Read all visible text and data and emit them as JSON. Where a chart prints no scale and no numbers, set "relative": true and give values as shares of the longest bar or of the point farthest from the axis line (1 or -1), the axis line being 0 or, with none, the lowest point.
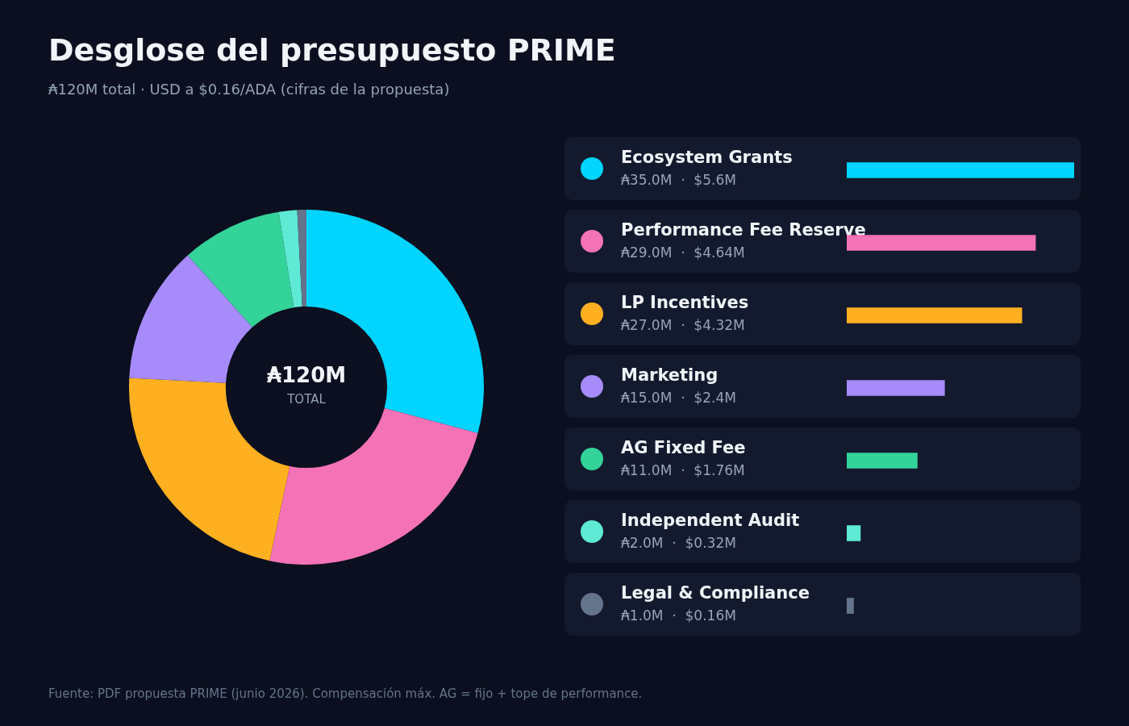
{
  "chart_data": [
    {
      "type": "donut",
      "title": "Desglose del presupuesto PRIME",
      "subtitle": "₳120M total · USD a $0.16/ADA (cifras de la propuesta)",
      "categories": [
        "Ecosystem Grants",
        "Performance Fee Reserve",
        "LP Incentives",
        "Marketing",
        "AG Fixed Fee",
        "Independent Audit",
        "Legal & Compliance"
      ],
      "values": [
        35,
        29,
        27,
        15,
        11,
        2,
        1
      ],
      "colors": [
        "#00d4ff",
        "#f472b6",
        "#ffb020",
        "#a78bfa",
        "#34d399",
        "#5eead4",
        "#64748b"
      ],
      "value_labels": [
        "₳35.0M",
        "₳29.0M",
        "₳27.0M",
        "₳15.0M",
        "₳11.0M",
        "₳2.0M",
        "₳1.0M"
      ],
      "legend": "right",
      "annotations": [
        "₳120M",
        "TOTAL",
        "Fuente: PDF propuesta PRIME (junio 2026). Compensación máx. AG = fijo + tope de performance.",
        {
          "text": "·  $5.6M",
          "x": "Ecosystem Grants"
        },
        {
          "text": "·  $4.64M",
          "x": "Performance Fee Reserve"
        },
        {
          "text": "·  $4.32M",
          "x": "LP Incentives"
        },
        {
          "text": "·  $2.4M",
          "x": "Marketing"
        },
        {
          "text": "·  $1.76M",
          "x": "AG Fixed Fee"
        },
        {
          "text": "·  $0.32M",
          "x": "Independent Audit"
        },
        {
          "text": "·  $0.16M",
          "x": "Legal & Compliance"
        }
      ]
    },
    {
      "type": "bar",
      "orientation": "horizontal",
      "relative": true,
      "categories": [
        null,
        null,
        null,
        null,
        null,
        null,
        null
      ],
      "values": [
        1,
        0.83,
        0.77,
        0.43,
        0.31,
        0.06,
        0.03
      ],
      "colors": [
        "#00d4ff",
        "#f472b6",
        "#ffb020",
        "#a78bfa",
        "#34d399",
        "#5eead4",
        "#64748b"
      ],
      "tick_labels": false
    }
  ]
}
